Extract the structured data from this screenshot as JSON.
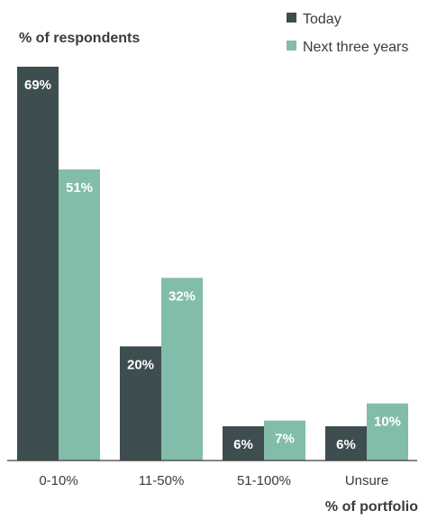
{
  "chart_data": {
    "type": "bar",
    "ylabel": "% of respondents",
    "xlabel": "% of portfolio",
    "ylim": [
      0,
      69
    ],
    "categories": [
      "0-10%",
      "11-50%",
      "51-100%",
      "Unsure"
    ],
    "series": [
      {
        "name": "Today",
        "color": "#3e4d4f",
        "values": [
          69,
          20,
          6,
          6
        ],
        "labels": [
          "69%",
          "20%",
          "6%",
          "6%"
        ]
      },
      {
        "name": "Next three years",
        "color": "#82bcaa",
        "values": [
          51,
          32,
          7,
          10
        ],
        "labels": [
          "51%",
          "32%",
          "7%",
          "10%"
        ]
      }
    ],
    "legend": "top-right",
    "grid": false
  }
}
